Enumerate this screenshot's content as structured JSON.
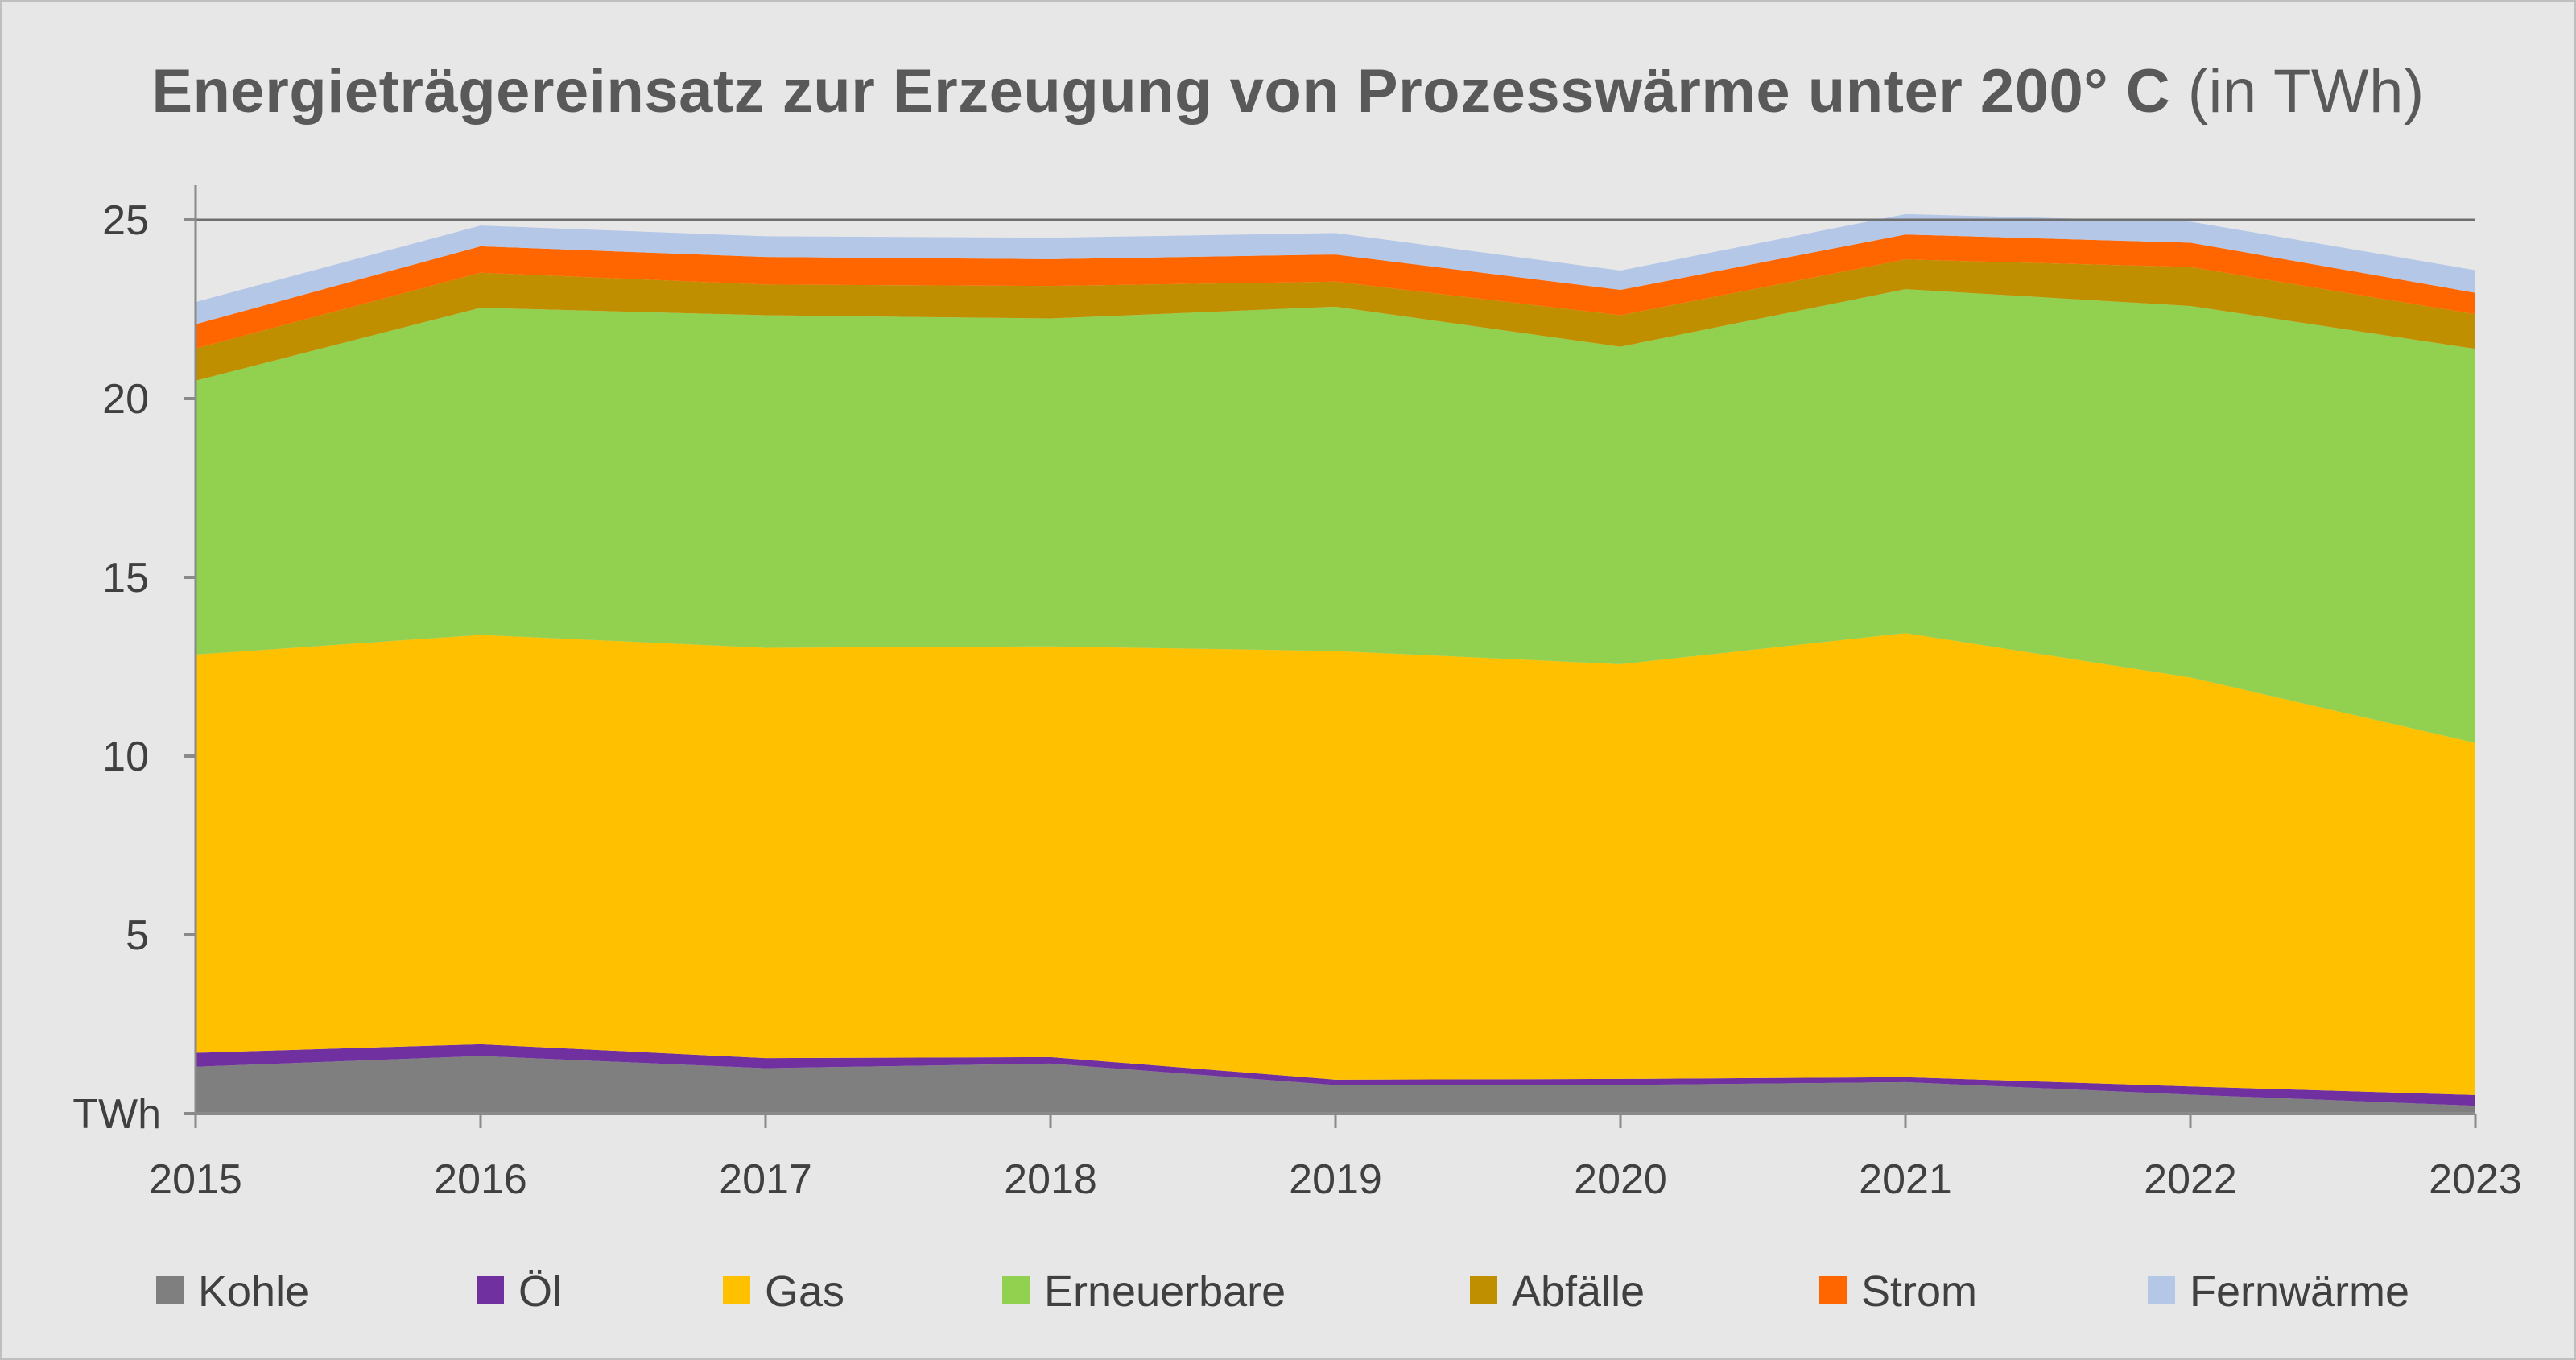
{
  "chart_data": {
    "type": "area",
    "stacked": true,
    "title": "Energieträgereinsatz zur Erzeugung von Prozesswärme unter 200° C",
    "title_unit": "(in TWh)",
    "ylabel": "TWh",
    "ylim": [
      0,
      25
    ],
    "yticks": [
      5,
      10,
      15,
      20,
      25
    ],
    "grid": "horizontal line at 25 only",
    "legend": "bottom",
    "categories": [
      "2015",
      "2016",
      "2017",
      "2018",
      "2019",
      "2020",
      "2021",
      "2022",
      "2023"
    ],
    "series": [
      {
        "name": "Kohle",
        "color": "#7f7f7f",
        "values": [
          1.31,
          1.61,
          1.27,
          1.4,
          0.8,
          0.8,
          0.88,
          0.53,
          0.22
        ]
      },
      {
        "name": "Öl",
        "color": "#7030a0",
        "values": [
          0.39,
          0.33,
          0.28,
          0.18,
          0.15,
          0.17,
          0.14,
          0.23,
          0.3
        ]
      },
      {
        "name": "Gas",
        "color": "#ffc000",
        "values": [
          11.14,
          11.45,
          11.48,
          11.49,
          11.99,
          11.6,
          12.42,
          11.44,
          9.85
        ]
      },
      {
        "name": "Erneuerbare",
        "color": "#92d050",
        "values": [
          7.66,
          9.15,
          9.3,
          9.17,
          9.63,
          8.88,
          9.62,
          10.39,
          11.02
        ]
      },
      {
        "name": "Abfälle",
        "color": "#bf8f00",
        "values": [
          0.9,
          0.98,
          0.86,
          0.91,
          0.7,
          0.88,
          0.83,
          1.09,
          0.97
        ]
      },
      {
        "name": "Strom",
        "color": "#ff6600",
        "values": [
          0.68,
          0.74,
          0.77,
          0.75,
          0.76,
          0.71,
          0.7,
          0.68,
          0.6
        ]
      },
      {
        "name": "Fernwärme",
        "color": "#b4c7e7",
        "values": [
          0.62,
          0.58,
          0.58,
          0.6,
          0.6,
          0.54,
          0.57,
          0.59,
          0.63
        ]
      }
    ]
  }
}
